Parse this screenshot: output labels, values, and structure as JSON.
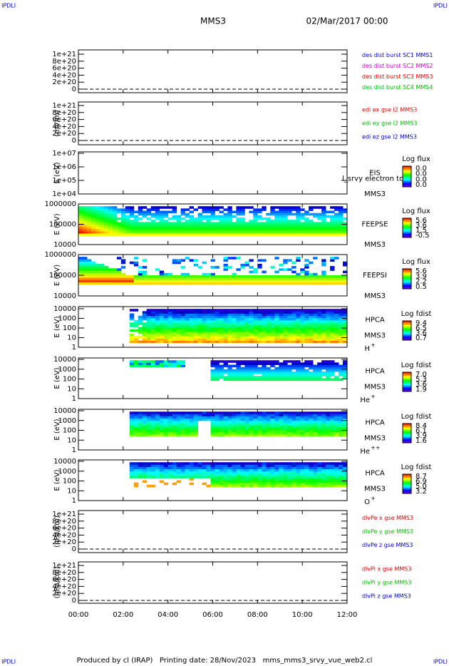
{
  "header": {
    "corner_left": "IPDLI",
    "corner_right": "IPDLI",
    "title": "MMS3",
    "date": "02/Mar/2017 00:00"
  },
  "panels": [
    {
      "ylabel": "",
      "yticks": [
        "1e+21",
        "8e+20",
        "6e+20",
        "4e+20",
        "2e+20",
        "0"
      ],
      "legend": [
        {
          "text": "des dist burst SC1 MMS1",
          "color": "#0000cc"
        },
        {
          "text": "des dist burst SC2 MMS2",
          "color": "#cc00cc"
        },
        {
          "text": "des dist burst SC3 MMS3",
          "color": "#dd0000"
        },
        {
          "text": "des dist burst SC4 MMS4",
          "color": "#00bb00"
        }
      ]
    },
    {
      "ylabel": "(mV/m)",
      "yticks": [
        "1e+21",
        "8e+20",
        "6e+20",
        "4e+20",
        "2e+20",
        "0"
      ],
      "legend": [
        {
          "text": "edi ex gse l2 MMS3",
          "color": "#dd0000"
        },
        {
          "text": "edi ey gse l2 MMS3",
          "color": "#00bb00"
        },
        {
          "text": "edi ez gse l2 MMS3",
          "color": "#0000cc"
        }
      ]
    },
    {
      "ylabel": "E (eV)",
      "yticks": [
        "1e+07",
        "1e+06",
        "1e+05",
        "1e+04"
      ],
      "instrument": "EIS",
      "sat": "MMS3",
      "overlay": "l_srvy electron to",
      "cbar_title": "Log flux",
      "cbar_labels": [
        "0.0",
        "0.0",
        "0.0",
        "0.0"
      ]
    },
    {
      "ylabel": "E (eV)",
      "yticks": [
        "1000000",
        "100000",
        "10000"
      ],
      "instrument": "FEEPSE",
      "sat": "MMS3",
      "cbar_title": "Log flux",
      "cbar_labels": [
        "5.6",
        "3.6",
        "1.5",
        "-0.5"
      ]
    },
    {
      "ylabel": "E (eV)",
      "yticks": [
        "1000000",
        "100000",
        "10000"
      ],
      "instrument": "FEEPSI",
      "sat": "MMS3",
      "cbar_title": "Log flux",
      "cbar_labels": [
        "5.6",
        "3.9",
        "2.2",
        "0.5"
      ]
    },
    {
      "ylabel": "E (eV)",
      "yticks": [
        "10000",
        "1000",
        "100",
        "10",
        "1"
      ],
      "instrument": "HPCA",
      "sat": "MMS3",
      "species": "H",
      "charge": "+",
      "cbar_title": "Log fdist",
      "cbar_labels": [
        "9.4",
        "6.5",
        "3.6",
        "0.7"
      ]
    },
    {
      "ylabel": "E (eV)",
      "yticks": [
        "10000",
        "1000",
        "100",
        "10",
        "1"
      ],
      "instrument": "HPCA",
      "sat": "MMS3",
      "species": "He",
      "charge": "+",
      "cbar_title": "Log fdist",
      "cbar_labels": [
        "7.0",
        "5.3",
        "3.6",
        "1.9"
      ]
    },
    {
      "ylabel": "E (eV)",
      "yticks": [
        "10000",
        "1000",
        "100",
        "10",
        "1"
      ],
      "instrument": "HPCA",
      "sat": "MMS3",
      "species": "He",
      "charge": "++",
      "cbar_title": "Log fdist",
      "cbar_labels": [
        "8.4",
        "6.1",
        "3.9",
        "1.6"
      ]
    },
    {
      "ylabel": "E (eV)",
      "yticks": [
        "10000",
        "1000",
        "100",
        "10",
        "1"
      ],
      "instrument": "HPCA",
      "sat": "MMS3",
      "species": "O",
      "charge": "+",
      "cbar_title": "Log fdist",
      "cbar_labels": [
        "8.7",
        "6.9",
        "5.0",
        "3.2"
      ]
    },
    {
      "ylabel": "(nPa/km)",
      "yticks": [
        "1e+21",
        "8e+20",
        "6e+20",
        "4e+20",
        "2e+20",
        "0"
      ],
      "legend": [
        {
          "text": "dlvPe x gse MMS3",
          "color": "#dd0000"
        },
        {
          "text": "dlvPe y gse MMS3",
          "color": "#00bb00"
        },
        {
          "text": "dlvPe z gse MMS3",
          "color": "#0000cc"
        }
      ]
    },
    {
      "ylabel": "(nPa/km)",
      "yticks": [
        "1e+21",
        "8e+20",
        "6e+20",
        "4e+20",
        "2e+20",
        "0"
      ],
      "legend": [
        {
          "text": "dlvPi x gse MMS3",
          "color": "#dd0000"
        },
        {
          "text": "dlvPi y gse MMS3",
          "color": "#00bb00"
        },
        {
          "text": "dlvPi z gse MMS3",
          "color": "#0000cc"
        }
      ]
    }
  ],
  "xticks": [
    "00:00",
    "02:00",
    "04:00",
    "06:00",
    "08:00",
    "10:00",
    "12:00"
  ],
  "footer": "Produced by cl (IRAP)   Printing date: 28/Nov/2023   mms_mms3_srvy_vue_web2.cl"
}
